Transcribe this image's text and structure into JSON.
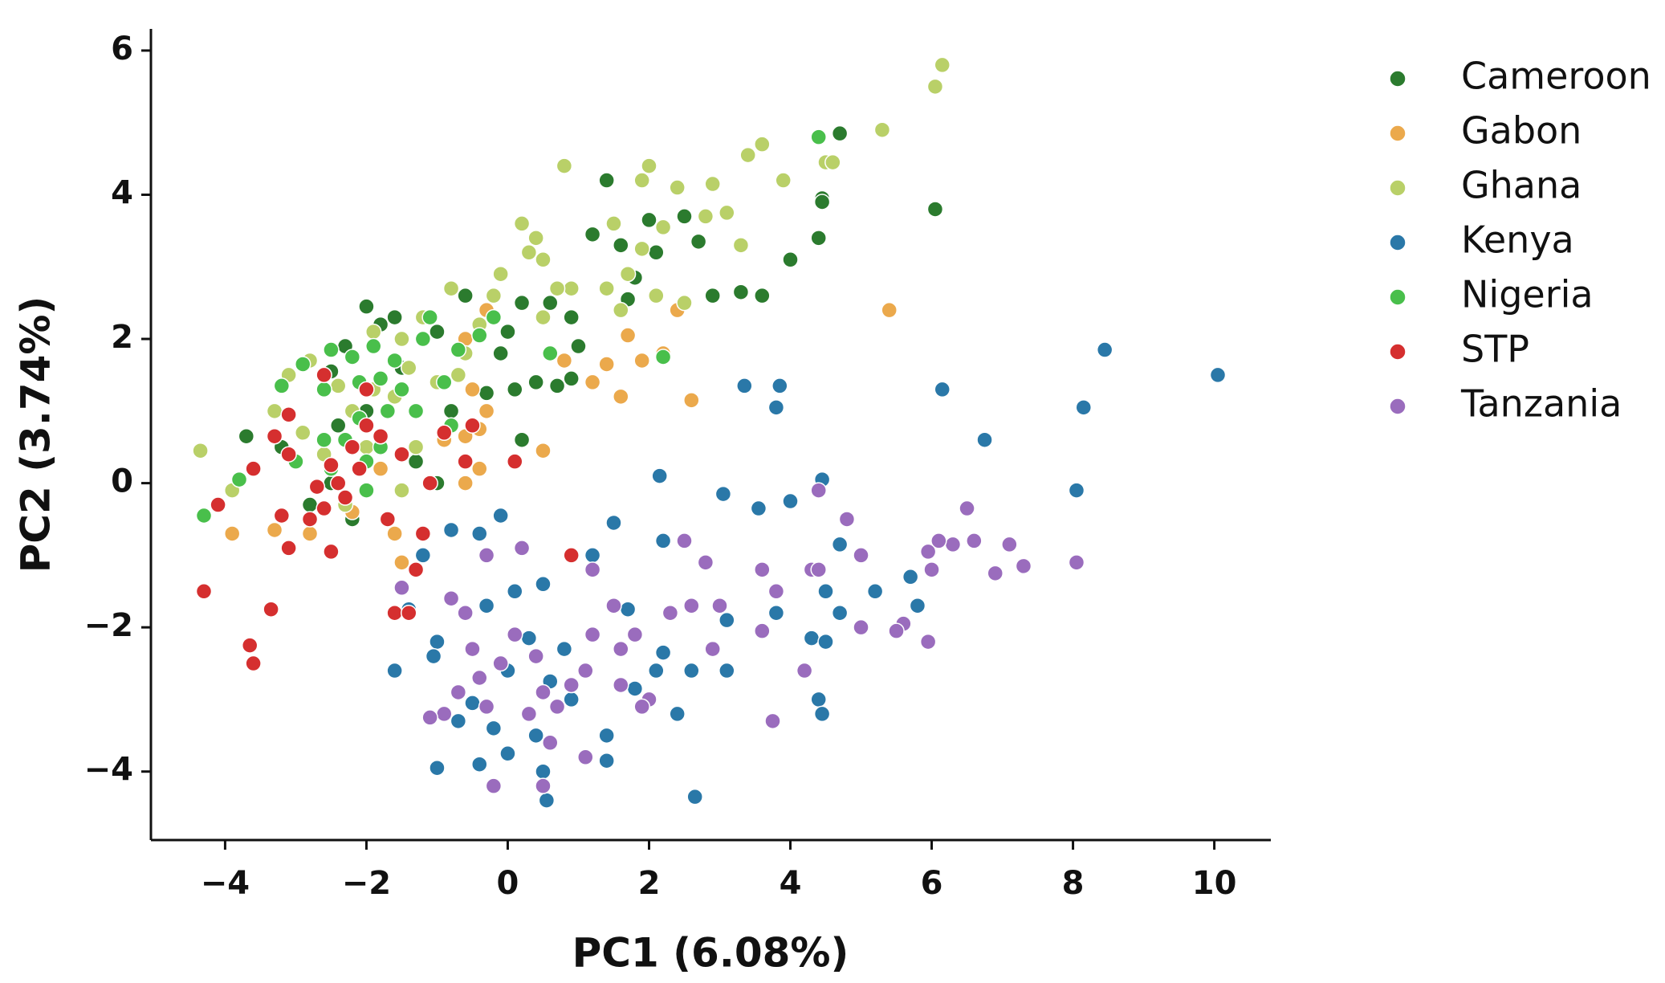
{
  "chart_data": {
    "type": "scatter",
    "x_label": "PC1 (6.08%)",
    "y_label": "PC2 (3.74%)",
    "xlim": [
      -5.05,
      10.8
    ],
    "ylim": [
      -4.95,
      6.3
    ],
    "xticks": [
      {
        "value": -4,
        "label": "−4"
      },
      {
        "value": -2,
        "label": "−2"
      },
      0,
      2,
      4,
      6,
      8,
      10
    ],
    "yticks": [
      {
        "value": -4,
        "label": "−4"
      },
      {
        "value": -2,
        "label": "−2"
      },
      0,
      2,
      4,
      6
    ],
    "legend": "outside-right",
    "series": [
      {
        "name": "Cameroon",
        "color": "#2b7b2e",
        "x": [
          4.7,
          4.45,
          4.45,
          6.05,
          1.4,
          4.4,
          4.0,
          2.0,
          2.5,
          2.7,
          1.6,
          1.2,
          2.1,
          1.8,
          3.3,
          3.6,
          2.9,
          1.7,
          0.2,
          0.6,
          0.9,
          1.0,
          0.9,
          0.7,
          0.4,
          0.1,
          -0.3,
          -0.6,
          -1.0,
          -1.6,
          -2.0,
          -1.8,
          -2.3,
          -2.5,
          -2.0,
          -2.4,
          -3.7,
          -3.2,
          -2.5,
          -2.2,
          -0.8,
          -0.1,
          0.2,
          -1.3,
          -1.0,
          -2.8,
          -1.5,
          0.0
        ],
        "values": [
          4.85,
          3.95,
          3.9,
          3.8,
          4.2,
          3.4,
          3.1,
          3.65,
          3.7,
          3.35,
          3.3,
          3.45,
          3.2,
          2.85,
          2.65,
          2.6,
          2.6,
          2.55,
          2.5,
          2.5,
          2.3,
          1.9,
          1.45,
          1.35,
          1.4,
          1.3,
          1.25,
          2.6,
          2.1,
          2.3,
          2.45,
          2.2,
          1.9,
          1.55,
          1.0,
          0.8,
          0.65,
          0.5,
          0.0,
          -0.5,
          1.0,
          1.8,
          0.6,
          0.3,
          0.0,
          -0.3,
          1.6,
          2.1
        ]
      },
      {
        "name": "Gabon",
        "color": "#eba94c",
        "x": [
          5.4,
          2.6,
          2.4,
          1.7,
          2.2,
          1.9,
          1.4,
          1.6,
          1.2,
          0.8,
          -0.3,
          -0.6,
          -0.5,
          -0.3,
          -0.4,
          -0.6,
          -0.4,
          -0.6,
          0.5,
          1.2,
          -1.5,
          -1.6,
          -2.2,
          -2.8,
          -3.3,
          -3.9,
          -0.9,
          -1.8
        ],
        "values": [
          2.4,
          1.15,
          2.4,
          2.05,
          1.8,
          1.7,
          1.65,
          1.2,
          1.4,
          1.7,
          2.4,
          2.0,
          1.3,
          1.0,
          0.75,
          0.65,
          0.2,
          0.0,
          0.45,
          -1.0,
          -1.1,
          -0.7,
          -0.4,
          -0.7,
          -0.65,
          -0.7,
          0.6,
          0.2
        ]
      },
      {
        "name": "Ghana",
        "color": "#b9d068",
        "x": [
          6.15,
          6.05,
          5.3,
          4.5,
          4.6,
          3.6,
          3.4,
          3.9,
          2.4,
          2.9,
          2.0,
          1.9,
          0.8,
          1.5,
          2.2,
          3.1,
          2.8,
          3.3,
          1.9,
          0.4,
          0.2,
          -0.1,
          0.3,
          0.5,
          0.9,
          0.7,
          1.4,
          1.7,
          2.1,
          2.5,
          1.6,
          0.5,
          -0.2,
          -0.4,
          -0.8,
          -1.2,
          -1.5,
          -1.9,
          -1.4,
          -1.0,
          -0.7,
          -1.6,
          -1.9,
          -2.4,
          -2.2,
          -2.8,
          -3.1,
          -3.3,
          -2.9,
          -2.6,
          -2.3,
          -1.5,
          -4.35,
          -3.9,
          -1.3,
          -0.6,
          -2.0
        ],
        "values": [
          5.8,
          5.5,
          4.9,
          4.45,
          4.45,
          4.7,
          4.55,
          4.2,
          4.1,
          4.15,
          4.4,
          4.2,
          4.4,
          3.6,
          3.55,
          3.75,
          3.7,
          3.3,
          3.25,
          3.4,
          3.6,
          2.9,
          3.2,
          3.1,
          2.7,
          2.7,
          2.7,
          2.9,
          2.6,
          2.5,
          2.4,
          2.3,
          2.6,
          2.2,
          2.7,
          2.3,
          2.0,
          2.1,
          1.6,
          1.4,
          1.5,
          1.2,
          1.3,
          1.35,
          1.0,
          1.7,
          1.5,
          1.0,
          0.7,
          0.4,
          -0.3,
          -0.1,
          0.45,
          -0.1,
          0.5,
          1.8,
          0.5
        ]
      },
      {
        "name": "Kenya",
        "color": "#2a78a8",
        "x": [
          10.05,
          8.45,
          8.15,
          8.05,
          6.75,
          6.15,
          3.85,
          3.8,
          3.35,
          4.45,
          3.05,
          4.0,
          3.55,
          2.15,
          1.5,
          2.2,
          4.7,
          5.2,
          5.7,
          4.5,
          4.7,
          5.8,
          4.3,
          4.5,
          3.8,
          3.1,
          1.7,
          2.2,
          2.6,
          3.1,
          2.4,
          4.4,
          4.45,
          2.65,
          1.4,
          1.4,
          0.9,
          0.55,
          0.5,
          0.0,
          -0.4,
          -1.0,
          -1.0,
          -1.05,
          -1.6,
          -1.4,
          -1.2,
          -0.8,
          -0.4,
          -0.1,
          0.1,
          0.5,
          1.2,
          0.3,
          0.8,
          0.0,
          -0.5,
          -0.7,
          -0.2,
          0.6,
          1.8,
          2.1,
          0.4,
          -0.3
        ],
        "values": [
          1.5,
          1.85,
          1.05,
          -0.1,
          0.6,
          1.3,
          1.35,
          1.05,
          1.35,
          0.05,
          -0.15,
          -0.25,
          -0.35,
          0.1,
          -0.55,
          -0.8,
          -0.85,
          -1.5,
          -1.3,
          -1.5,
          -1.8,
          -1.7,
          -2.15,
          -2.2,
          -1.8,
          -1.9,
          -1.75,
          -2.35,
          -2.6,
          -2.6,
          -3.2,
          -3.0,
          -3.2,
          -4.35,
          -3.5,
          -3.85,
          -3.0,
          -4.4,
          -4.0,
          -3.75,
          -3.9,
          -3.95,
          -2.2,
          -2.4,
          -2.6,
          -1.75,
          -1.0,
          -0.65,
          -0.7,
          -0.45,
          -1.5,
          -1.4,
          -1.0,
          -2.15,
          -2.3,
          -2.6,
          -3.05,
          -3.3,
          -3.4,
          -2.75,
          -2.85,
          -2.6,
          -3.5,
          -1.7
        ]
      },
      {
        "name": "Nigeria",
        "color": "#49bf4b",
        "x": [
          4.4,
          2.2,
          0.6,
          -0.2,
          -0.4,
          -0.7,
          -1.1,
          -1.2,
          -1.6,
          -1.9,
          -2.2,
          -2.5,
          -2.9,
          -1.8,
          -2.1,
          -2.6,
          -1.5,
          -1.7,
          -2.1,
          -2.3,
          -2.6,
          -3.2,
          -2.0,
          -1.8,
          -0.8,
          -2.5,
          -3.0,
          -3.8,
          -4.3,
          -2.0,
          -0.9,
          -1.3
        ],
        "values": [
          4.8,
          1.75,
          1.8,
          2.3,
          2.05,
          1.85,
          2.3,
          2.0,
          1.7,
          1.9,
          1.75,
          1.85,
          1.65,
          1.45,
          1.4,
          1.3,
          1.3,
          1.0,
          0.9,
          0.6,
          0.6,
          1.35,
          0.3,
          0.5,
          0.8,
          0.2,
          0.3,
          0.05,
          -0.45,
          -0.1,
          1.4,
          1.0
        ]
      },
      {
        "name": "STP",
        "color": "#d52f2f",
        "x": [
          0.1,
          0.9,
          -0.5,
          -0.9,
          -0.6,
          -1.1,
          -1.5,
          -1.8,
          -2.0,
          -2.2,
          -2.5,
          -2.1,
          -2.4,
          -2.3,
          -2.6,
          -2.7,
          -3.1,
          -3.1,
          -3.3,
          -3.6,
          -2.8,
          -3.1,
          -3.2,
          -2.5,
          -1.7,
          -1.2,
          -1.3,
          -1.6,
          -1.4,
          -3.35,
          -4.3,
          -4.1,
          -3.65,
          -3.6,
          -2.6,
          -2.0
        ],
        "values": [
          0.3,
          -1.0,
          0.8,
          0.7,
          0.3,
          0.0,
          0.4,
          0.65,
          0.8,
          0.5,
          0.25,
          0.2,
          0.0,
          -0.2,
          -0.35,
          -0.05,
          0.4,
          0.95,
          0.65,
          0.2,
          -0.5,
          -0.9,
          -0.45,
          -0.95,
          -0.5,
          -0.7,
          -1.2,
          -1.8,
          -1.8,
          -1.75,
          -1.5,
          -0.3,
          -2.25,
          -2.5,
          1.5,
          1.3
        ]
      },
      {
        "name": "Tanzania",
        "color": "#9a6cbd",
        "x": [
          8.05,
          7.3,
          7.1,
          6.9,
          6.6,
          6.5,
          6.3,
          6.1,
          5.95,
          6.0,
          5.95,
          5.6,
          5.5,
          5.0,
          4.8,
          5.0,
          4.4,
          4.3,
          4.4,
          4.2,
          3.8,
          3.75,
          3.6,
          3.6,
          3.0,
          2.9,
          2.6,
          2.3,
          2.0,
          1.9,
          1.6,
          1.6,
          1.8,
          1.5,
          1.2,
          1.1,
          0.9,
          1.1,
          0.7,
          0.5,
          0.4,
          0.6,
          0.3,
          0.1,
          -0.1,
          -0.4,
          -0.5,
          -0.3,
          -0.7,
          -0.9,
          -1.1,
          -0.6,
          -0.8,
          -0.3,
          0.2,
          -1.5,
          -0.2,
          0.5,
          1.2,
          2.5,
          2.8
        ],
        "values": [
          -1.1,
          -1.15,
          -0.85,
          -1.25,
          -0.8,
          -0.35,
          -0.85,
          -0.8,
          -0.95,
          -1.2,
          -2.2,
          -1.95,
          -2.05,
          -1.0,
          -0.5,
          -2.0,
          -0.1,
          -1.2,
          -1.2,
          -2.6,
          -1.5,
          -3.3,
          -1.2,
          -2.05,
          -1.7,
          -2.3,
          -1.7,
          -1.8,
          -3.0,
          -3.1,
          -2.8,
          -2.3,
          -2.1,
          -1.7,
          -2.1,
          -2.6,
          -2.8,
          -3.8,
          -3.1,
          -2.9,
          -2.4,
          -3.6,
          -3.2,
          -2.1,
          -2.5,
          -2.7,
          -2.3,
          -3.1,
          -2.9,
          -3.2,
          -3.25,
          -1.8,
          -1.6,
          -1.0,
          -0.9,
          -1.45,
          -4.2,
          -4.2,
          -1.2,
          -0.8,
          -1.1
        ]
      }
    ]
  }
}
